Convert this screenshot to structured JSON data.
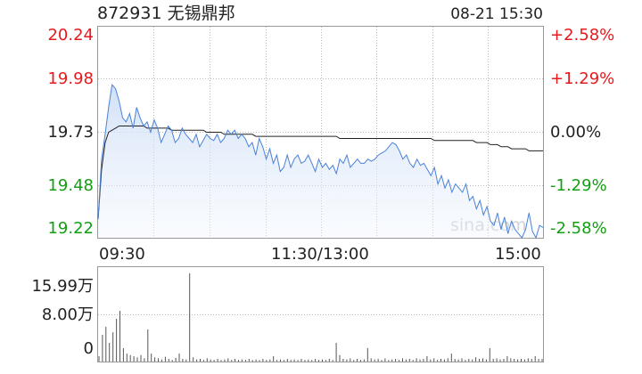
{
  "header": {
    "code": "872931",
    "name": "无锡鼎邦",
    "datetime": "08-21 15:30"
  },
  "colors": {
    "up": "#e8191c",
    "down": "#12a012",
    "price_line": "#4a82d8",
    "avg_line": "#222222",
    "volume": "#555555"
  },
  "watermark": "sina.com",
  "chart_data": [
    {
      "type": "line",
      "title": "",
      "x_ticks": [
        "09:30",
        "11:30/13:00",
        "15:00"
      ],
      "y_ticks_price": [
        "20.24",
        "19.98",
        "19.73",
        "19.48",
        "19.22"
      ],
      "y_ticks_change": [
        "+2.58%",
        "+1.29%",
        "0.00%",
        "-1.29%",
        "-2.58%"
      ],
      "ylim": [
        19.22,
        20.24
      ],
      "prev_close": 19.73,
      "grid": true,
      "series": [
        {
          "values": [
            19.31,
            19.6,
            19.72,
            19.85,
            19.96,
            19.94,
            19.88,
            19.8,
            19.78,
            19.82,
            19.75,
            19.85,
            19.8,
            19.76,
            19.78,
            19.73,
            19.79,
            19.75,
            19.68,
            19.72,
            19.76,
            19.74,
            19.68,
            19.7,
            19.75,
            19.72,
            19.7,
            19.68,
            19.72,
            19.66,
            19.69,
            19.72,
            19.7,
            19.69,
            19.72,
            19.68,
            19.7,
            19.74,
            19.72,
            19.74,
            19.7,
            19.72,
            19.7,
            19.66,
            19.68,
            19.62,
            19.7,
            19.66,
            19.6,
            19.65,
            19.58,
            19.62,
            19.54,
            19.56,
            19.62,
            19.56,
            19.6,
            19.62,
            19.58,
            19.59,
            19.62,
            19.58,
            19.54,
            19.6,
            19.56,
            19.58,
            19.55,
            19.57,
            19.53,
            19.6,
            19.58,
            19.62,
            19.56,
            19.58,
            19.6,
            19.58,
            19.58,
            19.6,
            19.59,
            19.6,
            19.62,
            19.63,
            19.64,
            19.66,
            19.68,
            19.67,
            19.64,
            19.6,
            19.62,
            19.58,
            19.56,
            19.6,
            19.57,
            19.58,
            19.55,
            19.52,
            19.56,
            19.48,
            19.52,
            19.46,
            19.5,
            19.44,
            19.48,
            19.46,
            19.44,
            19.48,
            19.4,
            19.42,
            19.36,
            19.4,
            19.33,
            19.37,
            19.3,
            19.28,
            19.34,
            19.26,
            19.32,
            19.24,
            19.3,
            19.26,
            19.24,
            19.22,
            19.26,
            19.34,
            19.25,
            19.22,
            19.28,
            19.27
          ]
        },
        {
          "values": [
            19.31,
            19.55,
            19.68,
            19.73,
            19.74,
            19.75,
            19.76,
            19.76,
            19.76,
            19.76,
            19.76,
            19.76,
            19.76,
            19.76,
            19.75,
            19.75,
            19.75,
            19.75,
            19.75,
            19.75,
            19.75,
            19.74,
            19.74,
            19.74,
            19.74,
            19.74,
            19.74,
            19.74,
            19.74,
            19.74,
            19.74,
            19.73,
            19.73,
            19.73,
            19.73,
            19.73,
            19.72,
            19.72,
            19.72,
            19.72,
            19.72,
            19.72,
            19.72,
            19.72,
            19.72,
            19.71,
            19.71,
            19.71,
            19.71,
            19.71,
            19.71,
            19.71,
            19.71,
            19.71,
            19.71,
            19.71,
            19.71,
            19.71,
            19.71,
            19.71,
            19.71,
            19.71,
            19.71,
            19.71,
            19.71,
            19.71,
            19.71,
            19.71,
            19.71,
            19.7,
            19.7,
            19.7,
            19.7,
            19.7,
            19.7,
            19.7,
            19.7,
            19.7,
            19.7,
            19.7,
            19.7,
            19.7,
            19.7,
            19.7,
            19.7,
            19.7,
            19.7,
            19.7,
            19.7,
            19.7,
            19.7,
            19.7,
            19.7,
            19.7,
            19.7,
            19.7,
            19.69,
            19.69,
            19.69,
            19.69,
            19.69,
            19.69,
            19.69,
            19.69,
            19.69,
            19.69,
            19.69,
            19.69,
            19.68,
            19.68,
            19.68,
            19.68,
            19.67,
            19.67,
            19.67,
            19.66,
            19.66,
            19.66,
            19.65,
            19.65,
            19.65,
            19.65,
            19.65,
            19.64,
            19.64,
            19.64,
            19.64,
            19.64
          ]
        }
      ]
    },
    {
      "type": "bar",
      "title": "",
      "y_ticks": [
        "15.99万",
        "8.00万",
        "0"
      ],
      "ylim": [
        0,
        15.99
      ],
      "unit": "万",
      "values": [
        1.0,
        5.0,
        6.5,
        3.5,
        5.5,
        8.0,
        9.5,
        2.5,
        1.5,
        1.2,
        1.0,
        0.8,
        1.2,
        0.6,
        6.0,
        1.5,
        0.8,
        0.6,
        0.4,
        0.9,
        0.5,
        0.3,
        0.7,
        1.5,
        0.5,
        0.4,
        16.5,
        0.8,
        0.4,
        0.5,
        0.3,
        0.6,
        0.4,
        0.3,
        0.5,
        0.3,
        0.4,
        0.6,
        0.3,
        0.5,
        0.3,
        0.4,
        0.3,
        0.5,
        0.3,
        0.4,
        0.3,
        0.5,
        0.3,
        0.4,
        1.0,
        0.3,
        0.4,
        0.3,
        0.5,
        0.3,
        0.4,
        0.3,
        0.5,
        0.3,
        0.4,
        0.3,
        0.5,
        0.3,
        0.4,
        0.3,
        0.5,
        0.3,
        3.5,
        1.2,
        0.5,
        0.4,
        0.6,
        0.3,
        0.5,
        0.3,
        0.4,
        2.5,
        0.6,
        0.4,
        0.5,
        0.3,
        0.6,
        0.3,
        0.4,
        0.5,
        0.3,
        0.6,
        0.4,
        0.5,
        0.3,
        0.6,
        0.4,
        0.5,
        1.0,
        0.4,
        0.6,
        0.3,
        0.5,
        0.4,
        0.6,
        1.5,
        0.5,
        0.4,
        0.6,
        0.3,
        0.5,
        0.4,
        0.8,
        0.5,
        0.6,
        0.4,
        2.5,
        0.5,
        0.6,
        0.4,
        0.5,
        1.0,
        0.6,
        0.5,
        0.4,
        0.5,
        0.4,
        0.6,
        0.5,
        1.0,
        0.5,
        0.5
      ]
    }
  ]
}
